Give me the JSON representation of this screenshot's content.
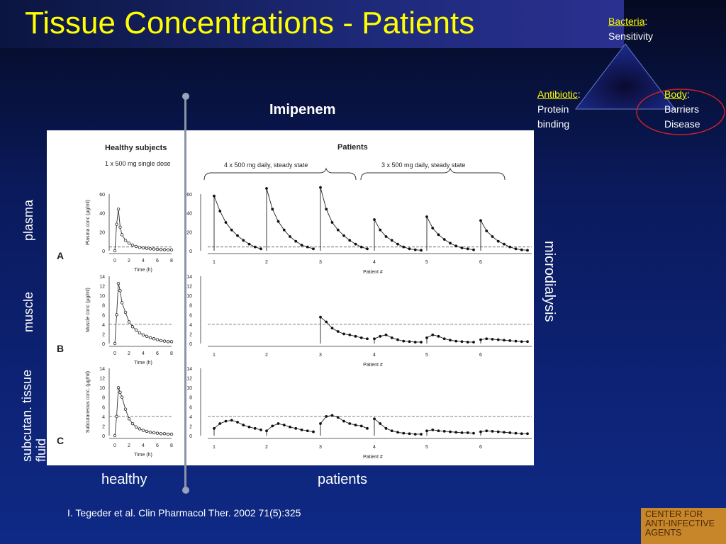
{
  "slide": {
    "title": "Tissue Concentrations - Patients",
    "drug": "Imipenem",
    "citation": "I. Tegeder et al. Clin Pharmacol Ther. 2002 71(5):325"
  },
  "triangle": {
    "bacteria": {
      "name": "Bacteria",
      "suffix": ":",
      "lines": [
        "Sensitivity"
      ]
    },
    "antibiotic": {
      "name": "Antibiotic",
      "suffix": ":",
      "lines": [
        "Protein",
        "binding"
      ]
    },
    "body": {
      "name": "Body",
      "suffix": ":",
      "lines": [
        "Barriers",
        "Disease"
      ]
    }
  },
  "labels": {
    "row_plasma": "plasma",
    "row_muscle": "muscle",
    "row_subcutan": "subcutan. tissue fluid",
    "microdialysis": "microdialysis",
    "healthy": "healthy",
    "patients": "patients"
  },
  "logo": {
    "lines": [
      "CENTER FOR",
      "ANTI-INFECTIVE",
      "AGENTS"
    ]
  },
  "colors": {
    "title": "#ffff00",
    "background": "#0d2274",
    "logo": "#c8862a",
    "ellipse": "#cc2222"
  },
  "chart_data": {
    "type": "line",
    "healthy_title": "Healthy subjects",
    "healthy_subtitle": "1 x 500 mg single dose",
    "patients_title": "Patients",
    "group1_label": "4 x 500 mg daily, steady state",
    "group2_label": "3 x 500 mg daily, steady state",
    "patient_axis_label": "Patient #",
    "patient_ids": [
      "1",
      "2",
      "3",
      "4",
      "5",
      "6"
    ],
    "time_label": "Time (h)",
    "time_ticks": [
      "0",
      "2",
      "4",
      "6",
      "8"
    ],
    "panels": [
      {
        "letter": "A",
        "ylabel": "Plasma conc (µg/ml)",
        "yticks": [
          "0",
          "20",
          "40",
          "60"
        ],
        "ylim": [
          0,
          60
        ],
        "threshold": 4,
        "healthy_t": [
          0,
          0.25,
          0.5,
          0.75,
          1,
          1.5,
          2,
          2.5,
          3,
          3.5,
          4,
          4.5,
          5,
          5.5,
          6,
          6.5,
          7,
          7.5,
          8
        ],
        "healthy_c": [
          0,
          28,
          44,
          25,
          17,
          11,
          8,
          6,
          4.5,
          3.5,
          3,
          2.5,
          2,
          1.8,
          1.5,
          1.3,
          1.2,
          1,
          1
        ],
        "patients_c": [
          [
            58,
            42,
            30,
            22,
            16,
            11,
            7,
            4,
            2
          ],
          [
            66,
            44,
            31,
            22,
            15,
            10,
            6,
            4,
            2
          ],
          [
            67,
            44,
            30,
            22,
            16,
            11,
            7,
            4,
            2
          ],
          [
            33,
            22,
            15,
            11,
            7,
            4,
            2,
            1,
            0.5
          ],
          [
            36,
            24,
            17,
            12,
            8,
            5,
            3,
            2,
            1
          ],
          [
            32,
            21,
            15,
            10,
            7,
            4,
            2,
            1,
            0.5
          ]
        ],
        "patients_threshold": 4
      },
      {
        "letter": "B",
        "ylabel": "Muscle conc (µg/ml)",
        "yticks": [
          "0",
          "2",
          "4",
          "6",
          "8",
          "10",
          "12",
          "14"
        ],
        "ylim": [
          0,
          14
        ],
        "threshold": 4,
        "healthy_t": [
          0,
          0.25,
          0.5,
          0.75,
          1,
          1.5,
          2,
          2.5,
          3,
          3.5,
          4,
          4.5,
          5,
          5.5,
          6,
          6.5,
          7,
          7.5,
          8
        ],
        "healthy_c": [
          0,
          6,
          12.5,
          11,
          8.5,
          6.5,
          4.5,
          3.5,
          2.8,
          2.2,
          1.8,
          1.5,
          1.2,
          1,
          0.8,
          0.6,
          0.5,
          0.4,
          0.4
        ],
        "patients_c": [
          [],
          [],
          [
            5.5,
            4.5,
            3.2,
            2.5,
            2,
            1.8,
            1.5,
            1.2,
            1
          ],
          [
            1,
            1.5,
            1.8,
            1.2,
            0.8,
            0.5,
            0.4,
            0.3,
            0.3
          ],
          [
            1.2,
            1.8,
            1.5,
            1,
            0.7,
            0.5,
            0.4,
            0.3,
            0.3
          ],
          [
            0.8,
            1,
            0.9,
            0.8,
            0.7,
            0.6,
            0.5,
            0.4,
            0.4
          ]
        ],
        "patients_threshold": 4
      },
      {
        "letter": "C",
        "ylabel": "Subcutaneous conc. (µg/ml)",
        "yticks": [
          "0",
          "2",
          "4",
          "6",
          "8",
          "10",
          "12",
          "14"
        ],
        "ylim": [
          0,
          14
        ],
        "threshold": 4,
        "healthy_t": [
          0,
          0.25,
          0.5,
          0.75,
          1,
          1.5,
          2,
          2.5,
          3,
          3.5,
          4,
          4.5,
          5,
          5.5,
          6,
          6.5,
          7,
          7.5,
          8
        ],
        "healthy_c": [
          0,
          4,
          10,
          9,
          8,
          5.5,
          3.5,
          2.5,
          1.8,
          1.4,
          1.1,
          0.9,
          0.7,
          0.6,
          0.5,
          0.4,
          0.4,
          0.3,
          0.3
        ],
        "patients_c": [
          [
            1.5,
            2.5,
            3,
            3.2,
            2.8,
            2.2,
            1.8,
            1.5,
            1.2
          ],
          [
            1,
            2,
            2.5,
            2.2,
            1.8,
            1.5,
            1.2,
            1,
            0.8
          ],
          [
            2.5,
            4,
            4.2,
            3.8,
            3,
            2.5,
            2.2,
            2,
            1.5
          ],
          [
            3.5,
            2.5,
            1.5,
            1,
            0.7,
            0.5,
            0.4,
            0.3,
            0.3
          ],
          [
            1,
            1.2,
            1,
            0.9,
            0.8,
            0.7,
            0.6,
            0.6,
            0.5
          ],
          [
            0.8,
            1,
            0.9,
            0.8,
            0.7,
            0.6,
            0.5,
            0.4,
            0.4
          ]
        ],
        "patients_threshold": 4
      }
    ]
  }
}
